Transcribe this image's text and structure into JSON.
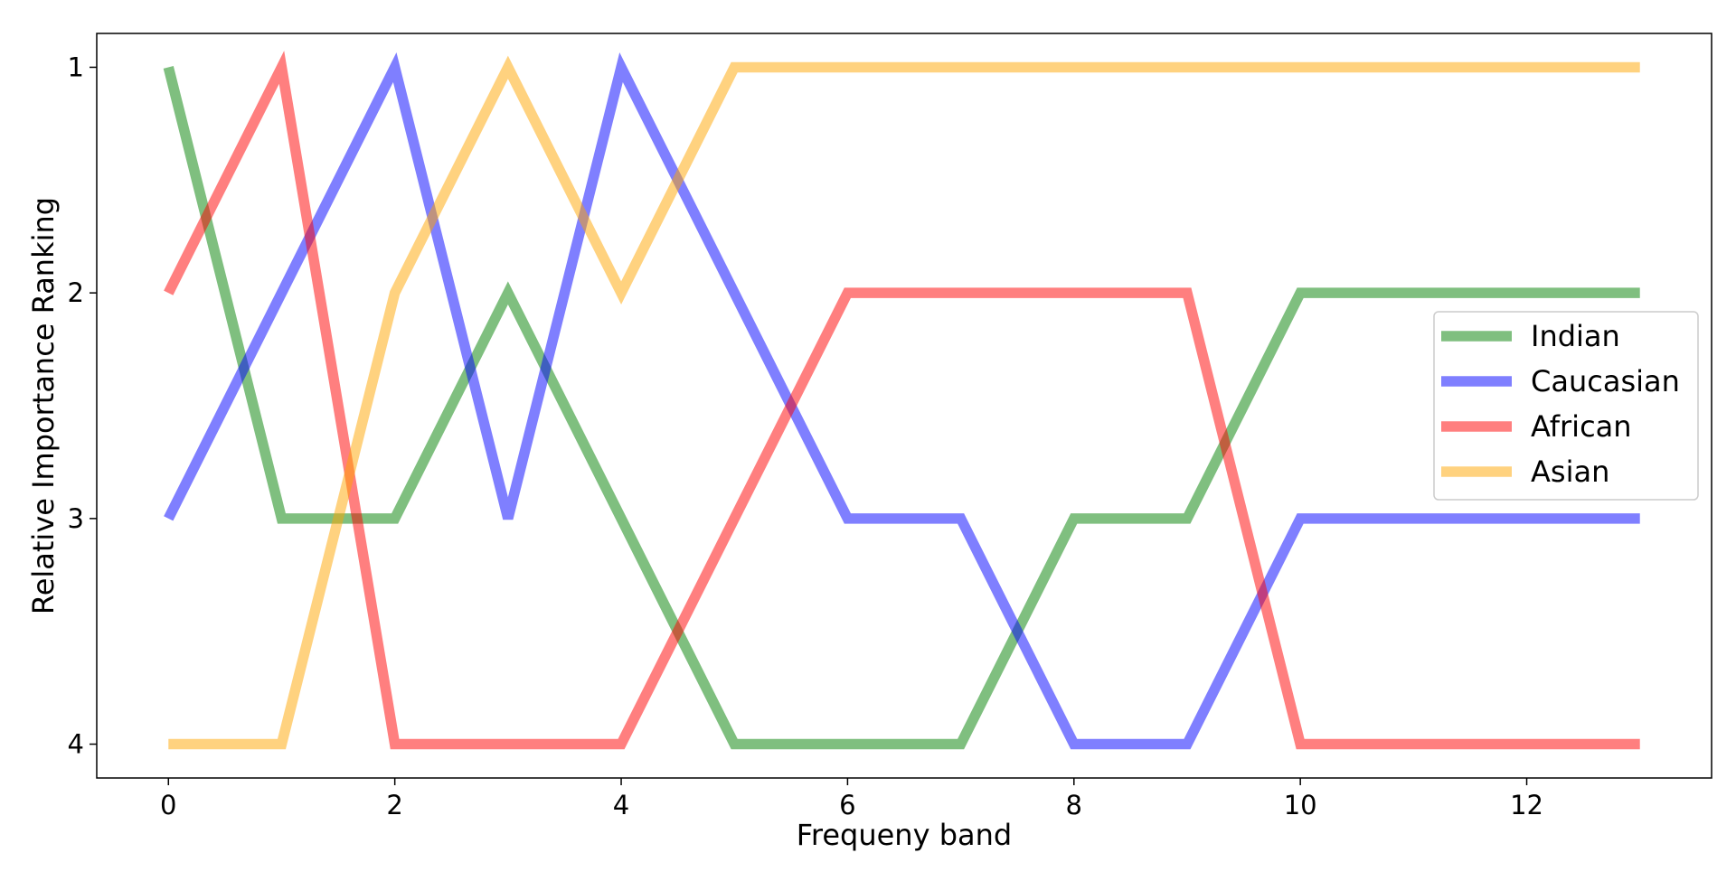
{
  "chart_data": {
    "type": "line",
    "xlabel": "Frequeny band",
    "ylabel": "Relative Importance Ranking",
    "x": [
      0,
      1,
      2,
      3,
      4,
      5,
      6,
      7,
      8,
      9,
      10,
      11,
      12,
      13
    ],
    "xlim": [
      -0.6333,
      13.6333
    ],
    "ylim": [
      4.15,
      0.85
    ],
    "y_inverted": true,
    "x_ticks": [
      0,
      2,
      4,
      6,
      8,
      10,
      12
    ],
    "y_ticks": [
      1,
      2,
      3,
      4
    ],
    "grid": false,
    "legend_position": "center-right",
    "series": [
      {
        "name": "Indian",
        "color": "#008000",
        "opacity": 0.5,
        "values": [
          1,
          3,
          3,
          2,
          3,
          4,
          4,
          4,
          3,
          3,
          2,
          2,
          2,
          2
        ]
      },
      {
        "name": "Caucasian",
        "color": "#0000ff",
        "opacity": 0.5,
        "values": [
          3,
          2,
          1,
          3,
          1,
          2,
          3,
          3,
          4,
          4,
          3,
          3,
          3,
          3
        ]
      },
      {
        "name": "African",
        "color": "#ff0000",
        "opacity": 0.5,
        "values": [
          2,
          1,
          4,
          4,
          4,
          3,
          2,
          2,
          2,
          2,
          4,
          4,
          4,
          4
        ]
      },
      {
        "name": "Asian",
        "color": "#ffa500",
        "opacity": 0.5,
        "values": [
          4,
          4,
          2,
          1,
          2,
          1,
          1,
          1,
          1,
          1,
          1,
          1,
          1,
          1
        ]
      }
    ]
  }
}
